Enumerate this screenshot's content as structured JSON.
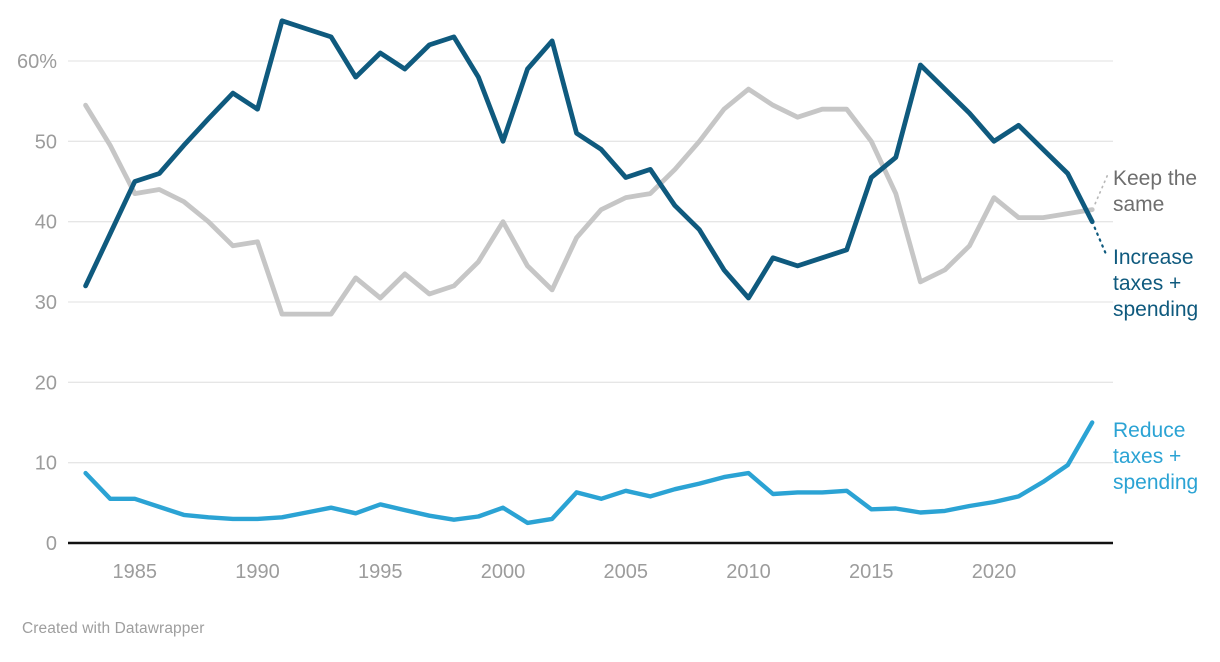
{
  "chart_data": {
    "type": "line",
    "x": [
      1983,
      1984,
      1985,
      1986,
      1987,
      1988,
      1989,
      1990,
      1991,
      1992,
      1993,
      1994,
      1995,
      1996,
      1997,
      1998,
      1999,
      2000,
      2001,
      2002,
      2003,
      2004,
      2005,
      2006,
      2007,
      2008,
      2009,
      2010,
      2011,
      2012,
      2013,
      2014,
      2015,
      2016,
      2017,
      2018,
      2019,
      2020,
      2021,
      2022,
      2023,
      2024
    ],
    "series": [
      {
        "name": "Keep the same",
        "color": "#c6c6c6",
        "values": [
          54.5,
          49.5,
          43.5,
          44,
          42.5,
          40,
          37,
          37.5,
          28.5,
          28.5,
          28.5,
          33,
          30.5,
          33.5,
          31,
          32,
          35,
          40,
          34.5,
          31.5,
          38,
          41.5,
          43,
          43.5,
          46.5,
          50,
          54,
          56.5,
          54.5,
          53,
          54,
          54,
          50,
          43.5,
          32.5,
          34,
          37,
          43,
          40.5,
          40.5,
          41,
          41.5
        ]
      },
      {
        "name": "Increase taxes + spending",
        "color": "#0f5a7e",
        "values": [
          32,
          38.5,
          45,
          46,
          49.5,
          52.8,
          56,
          54,
          65,
          64,
          63,
          58,
          61,
          59,
          62,
          63,
          58,
          50,
          59,
          62.5,
          51,
          49,
          45.5,
          46.5,
          42,
          39,
          34,
          30.5,
          35.5,
          34.5,
          35.5,
          36.5,
          45.5,
          48,
          59.5,
          56.5,
          53.5,
          50,
          52,
          49,
          46,
          40
        ]
      },
      {
        "name": "Reduce taxes + spending",
        "color": "#2ba3d4",
        "values": [
          8.7,
          5.5,
          5.5,
          4.5,
          3.5,
          3.2,
          3,
          3,
          3.2,
          3.8,
          4.4,
          3.7,
          4.8,
          4.1,
          3.4,
          2.9,
          3.3,
          4.4,
          2.5,
          3,
          6.3,
          5.5,
          6.5,
          5.8,
          6.7,
          7.4,
          8.2,
          8.7,
          6.1,
          6.3,
          6.3,
          6.5,
          4.2,
          4.3,
          3.8,
          4,
          4.6,
          5.1,
          5.8,
          7.6,
          9.7,
          15
        ]
      }
    ],
    "xlim": [
      1983,
      2024
    ],
    "ylim": [
      0,
      65
    ],
    "yticks": [
      0,
      10,
      20,
      30,
      40,
      50,
      60
    ],
    "ytick_labels": [
      "0",
      "10",
      "20",
      "30",
      "40",
      "50",
      "60%"
    ],
    "xticks": [
      1985,
      1990,
      1995,
      2000,
      2005,
      2010,
      2015,
      2020
    ],
    "grid": true,
    "legend_position": "right-edge-direct-labels"
  },
  "annotations": {
    "keep_label_lines": [
      "Keep the",
      "same"
    ],
    "increase_label_lines": [
      "Increase",
      "taxes +",
      "spending"
    ],
    "reduce_label_lines": [
      "Reduce",
      "taxes +",
      "spending"
    ]
  },
  "colors": {
    "increase_line": "#0f5a7e",
    "keep_line": "#c6c6c6",
    "reduce_line": "#2ba3d4",
    "gridline": "#e6e6e6",
    "axis_line": "#111111",
    "tick_text": "#9c9c9c",
    "keep_label_text": "#6e6e6e",
    "credit_text": "#9e9e9e"
  },
  "footer": {
    "credit": "Created with Datawrapper"
  }
}
